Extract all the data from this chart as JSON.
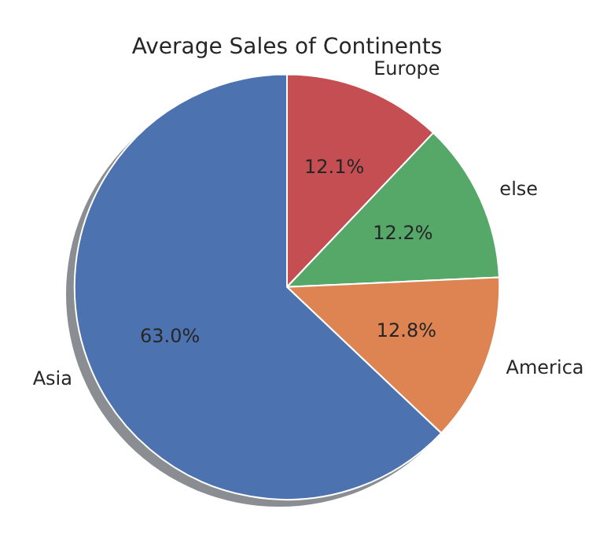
{
  "chart_data": {
    "type": "pie",
    "title": "Average Sales of Continents",
    "categories": [
      "Europe",
      "else",
      "America",
      "Asia"
    ],
    "values": [
      12.1,
      12.2,
      12.8,
      63.0
    ],
    "colors": [
      "#c44e52",
      "#55a868",
      "#dd8452",
      "#4c72b0"
    ],
    "value_labels": [
      "12.1%",
      "12.2%",
      "12.8%",
      "63.0%"
    ],
    "legend": false
  }
}
